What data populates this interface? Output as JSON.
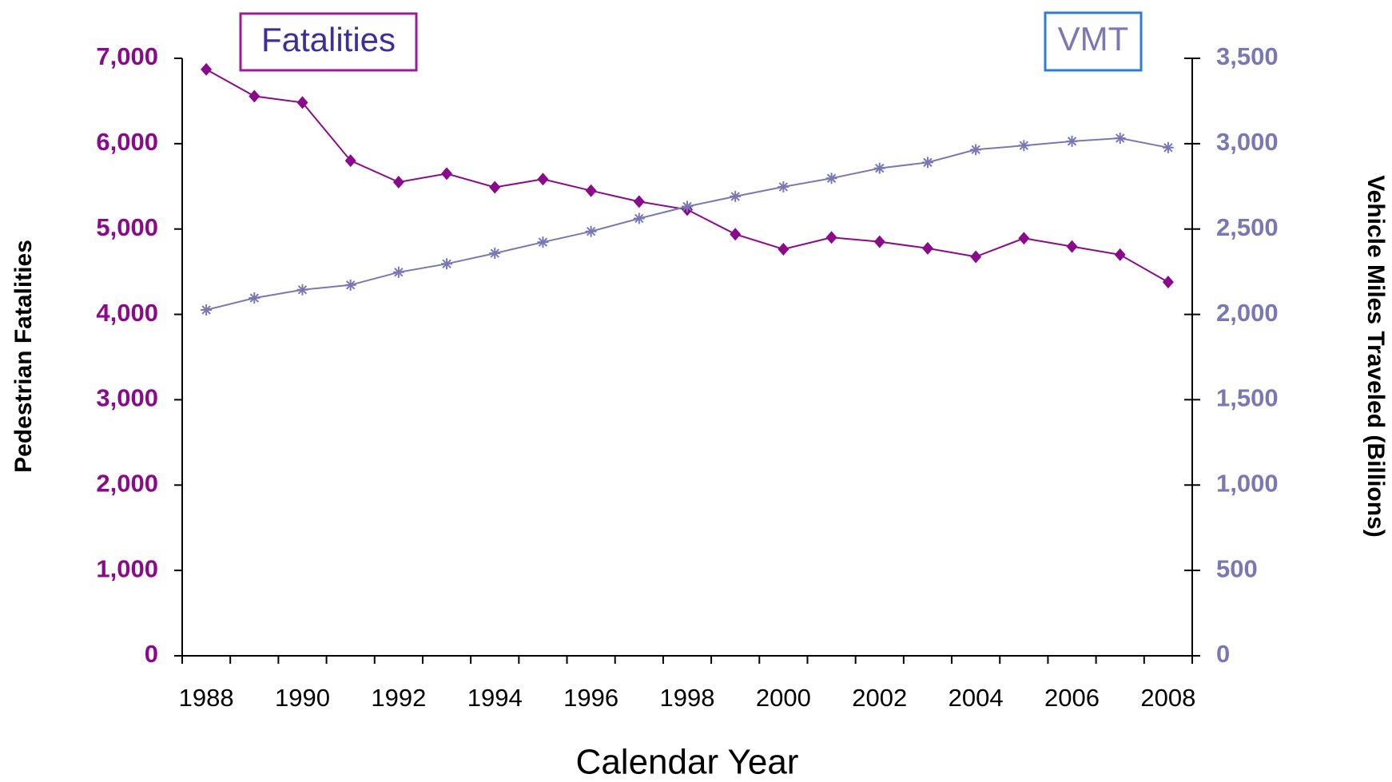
{
  "chart_data": {
    "type": "line",
    "x_label": "Calendar Year",
    "y_label": "Pedestrian Fatalities",
    "y2_label": "Vehicle Miles Traveled (Billions)",
    "categories": [
      "1988",
      null,
      "1990",
      null,
      "1992",
      null,
      "1994",
      null,
      "1996",
      null,
      "1998",
      null,
      "2000",
      null,
      "2002",
      null,
      "2004",
      null,
      "2006",
      null,
      "2008"
    ],
    "series": [
      {
        "name": "Fatalities",
        "color": "#8b0a8b",
        "axis": "y",
        "values": [
          6870,
          6556,
          6482,
          5801,
          5549,
          5649,
          5489,
          5584,
          5449,
          5321,
          5228,
          4939,
          4763,
          4901,
          4851,
          4774,
          4675,
          4892,
          4795,
          4699,
          4378
        ]
      },
      {
        "name": "VMT",
        "color": "#7a78b4",
        "axis": "y2",
        "values": [
          2026,
          2096,
          2144,
          2172,
          2247,
          2296,
          2358,
          2423,
          2486,
          2562,
          2632,
          2691,
          2747,
          2797,
          2856,
          2890,
          2965,
          2989,
          3014,
          3032,
          2977
        ]
      }
    ],
    "ylim": [
      0,
      7000
    ],
    "yticks": [
      0,
      {
        "value": 1000,
        "label": "1,000"
      },
      {
        "value": 2000,
        "label": "2,000"
      },
      {
        "value": 3000,
        "label": "3,000"
      },
      {
        "value": 4000,
        "label": "4,000"
      },
      {
        "value": 5000,
        "label": "5,000"
      },
      {
        "value": 6000,
        "label": "6,000"
      },
      {
        "value": 7000,
        "label": "7,000"
      }
    ],
    "y2lim": [
      0,
      3500
    ],
    "y2ticks": [
      0,
      500,
      {
        "value": 1000,
        "label": "1,000"
      },
      {
        "value": 1500,
        "label": "1,500"
      },
      {
        "value": 2000,
        "label": "2,000"
      },
      {
        "value": 2500,
        "label": "2,500"
      },
      {
        "value": 3000,
        "label": "3,000"
      },
      {
        "value": 3500,
        "label": "3,500"
      }
    ],
    "grid": false
  }
}
